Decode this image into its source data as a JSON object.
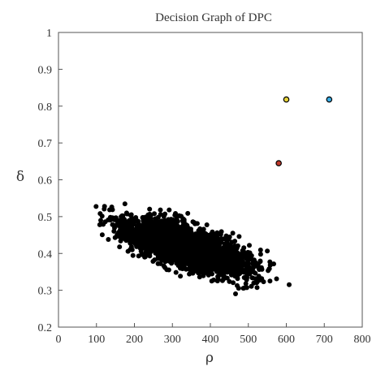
{
  "chart_data": {
    "type": "scatter",
    "title": "Decision Graph of DPC",
    "xlabel": "ρ",
    "ylabel": "δ",
    "xlim": [
      0,
      800
    ],
    "ylim": [
      0.2,
      1.0
    ],
    "x_ticks": [
      "0",
      "100",
      "200",
      "300",
      "400",
      "500",
      "600",
      "700",
      "800"
    ],
    "y_ticks": [
      "0.2",
      "0.3",
      "0.4",
      "0.5",
      "0.6",
      "0.7",
      "0.8",
      "0.9",
      "1"
    ],
    "grid": false,
    "background_cluster": {
      "color": "#000000",
      "count": 2400,
      "center_trend": [
        [
          100,
          0.49
        ],
        [
          200,
          0.455
        ],
        [
          300,
          0.43
        ],
        [
          400,
          0.4
        ],
        [
          500,
          0.37
        ],
        [
          600,
          0.355
        ]
      ],
      "x_range": [
        60,
        660
      ],
      "y_range": [
        0.255,
        0.62
      ]
    },
    "highlighted_points": [
      {
        "x": 580,
        "y": 0.645,
        "color": "#c0392b"
      },
      {
        "x": 600,
        "y": 0.818,
        "color": "#e6d23a"
      },
      {
        "x": 713,
        "y": 0.818,
        "color": "#3aaee6"
      }
    ]
  }
}
